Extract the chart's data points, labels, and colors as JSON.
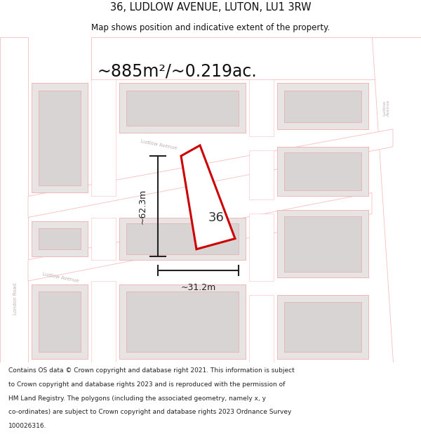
{
  "title": "36, LUDLOW AVENUE, LUTON, LU1 3RW",
  "subtitle": "Map shows position and indicative extent of the property.",
  "area_text": "~885m²/~0.219ac.",
  "label_36": "36",
  "dim_horizontal": "~31.2m",
  "dim_vertical": "~62.3m",
  "footer_lines": [
    "Contains OS data © Crown copyright and database right 2021. This information is subject",
    "to Crown copyright and database rights 2023 and is reproduced with the permission of",
    "HM Land Registry. The polygons (including the associated geometry, namely x, y",
    "co-ordinates) are subject to Crown copyright and database rights 2023 Ordnance Survey",
    "100026316."
  ],
  "map_bg": "#f2efef",
  "road_fill": "#ffffff",
  "road_edge": "#f5bfbf",
  "block_fill": "#e8e4e4",
  "block_edge": "#f0b8b8",
  "inner_fill": "#d8d4d4",
  "inner_edge": "#e8b0b0",
  "property_fill": "#ffffff",
  "property_edge": "#cc0000",
  "dim_color": "#222222",
  "street_label_color": "#c0b0b0",
  "title_color": "#111111",
  "footer_color": "#222222",
  "figsize": [
    6.0,
    6.25
  ],
  "dpi": 100
}
